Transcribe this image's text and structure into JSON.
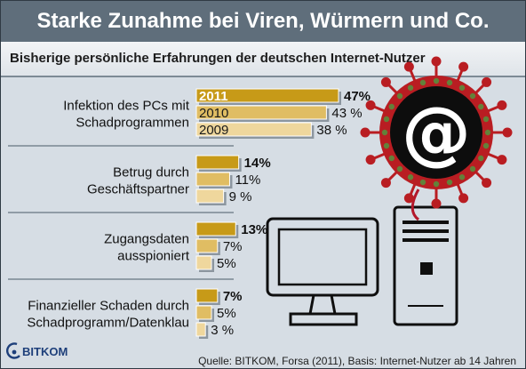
{
  "title": "Starke Zunahme bei Viren, Würmern und Co.",
  "subtitle": "Bisherige persönliche Erfahrungen der deutschen Internet-Nutzer",
  "source": "Quelle: BITKOM, Forsa (2011), Basis: Internet-Nutzer ab 14 Jahren",
  "logo_text": "BITKOM",
  "icon_badge": "@",
  "colors": {
    "title_bg": "#5f6e7b",
    "background": "#d6dde4",
    "bar_2011": "#c79a18",
    "bar_2010": "#e0bd63",
    "bar_2009": "#efd79d",
    "virus_red": "#b91d22",
    "virus_green": "#63813a",
    "cable": "#b3172a",
    "computer_outline": "#0f0f0f"
  },
  "icons": [
    "virus-at-icon",
    "computer-monitor-icon",
    "computer-tower-icon",
    "bitkom-logo"
  ],
  "chart_data": {
    "type": "bar",
    "orientation": "horizontal",
    "series_names": [
      "2011",
      "2010",
      "2009"
    ],
    "categories": [
      {
        "label_lines": [
          "Infektion des PCs mit",
          "Schadprogrammen"
        ],
        "values": [
          47,
          43,
          38
        ],
        "value_labels": [
          "47%",
          "43 %",
          "38 %"
        ]
      },
      {
        "label_lines": [
          "Betrug durch",
          "Geschäftspartner"
        ],
        "values": [
          14,
          11,
          9
        ],
        "value_labels": [
          "14%",
          "11%",
          "9 %"
        ]
      },
      {
        "label_lines": [
          "Zugangsdaten",
          "ausspioniert"
        ],
        "values": [
          13,
          7,
          5
        ],
        "value_labels": [
          "13%",
          "7%",
          "5%"
        ]
      },
      {
        "label_lines": [
          "Finanzieller Schaden durch",
          "Schadprogramm/Datenklau"
        ],
        "values": [
          7,
          5,
          3
        ],
        "value_labels": [
          "7%",
          "5%",
          "3 %"
        ]
      }
    ],
    "xlim": [
      0,
      50
    ],
    "unit": "%",
    "grid": false,
    "legend": "inline year labels on the first group's bars"
  }
}
